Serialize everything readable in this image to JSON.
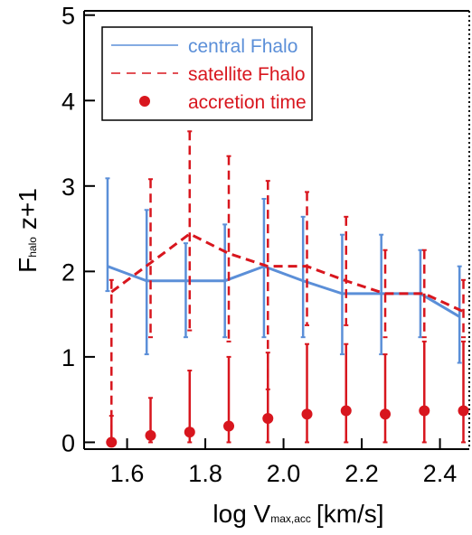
{
  "chart_data": {
    "type": "line",
    "xlabel": {
      "main": "log V",
      "sub": "max,acc",
      "rest": "[km/s]"
    },
    "ylabel": {
      "main": "F",
      "sub": "halo",
      "rest": "z+1"
    },
    "xlim": [
      1.49,
      2.475
    ],
    "ylim": [
      -0.08,
      5.05
    ],
    "xticks": [
      1.6,
      1.8,
      {
        "value": 2.0,
        "label": "2.0"
      },
      2.2,
      2.4
    ],
    "yticks": [
      0,
      1,
      2,
      3,
      4,
      5
    ],
    "legend": "top-left",
    "series": [
      {
        "name": "central Fhalo",
        "style": "solid",
        "color": "#5b8fd8",
        "x": [
          1.55,
          1.65,
          1.75,
          1.85,
          1.95,
          2.05,
          2.15,
          2.25,
          2.35,
          2.45
        ],
        "values": [
          2.06,
          1.89,
          1.89,
          1.89,
          2.06,
          1.89,
          1.74,
          1.74,
          1.74,
          1.47
        ],
        "lower": [
          1.77,
          1.03,
          1.23,
          1.23,
          1.23,
          1.23,
          1.03,
          1.03,
          1.23,
          0.93
        ],
        "upper": [
          3.09,
          2.72,
          2.33,
          2.55,
          2.85,
          2.64,
          2.43,
          2.43,
          2.25,
          2.06
        ]
      },
      {
        "name": "satellite Fhalo",
        "style": "dashed",
        "color": "#d8161e",
        "x": [
          1.56,
          1.66,
          1.76,
          1.86,
          1.96,
          2.06,
          2.16,
          2.26,
          2.36,
          2.46
        ],
        "values": [
          1.76,
          2.1,
          2.44,
          2.21,
          2.06,
          2.06,
          1.89,
          1.74,
          1.74,
          1.53
        ],
        "lower": [
          0,
          1.23,
          1.31,
          1.18,
          0.62,
          1.37,
          1.37,
          1.23,
          1.23,
          1.23
        ],
        "upper": [
          1.9,
          3.08,
          3.64,
          3.35,
          3.06,
          2.93,
          2.64,
          2.25,
          2.25,
          1.9
        ]
      },
      {
        "name": "accretion time",
        "style": "points",
        "color": "#d8161e",
        "x": [
          1.56,
          1.66,
          1.76,
          1.86,
          1.96,
          2.06,
          2.16,
          2.26,
          2.36,
          2.46
        ],
        "values": [
          0.0,
          0.08,
          0.12,
          0.19,
          0.28,
          0.33,
          0.37,
          0.33,
          0.37,
          0.37
        ],
        "lower": [
          0,
          0,
          0,
          0,
          0,
          0,
          0,
          0,
          0,
          0
        ],
        "upper": [
          0.31,
          0.52,
          0.84,
          1.0,
          1.05,
          1.15,
          1.15,
          1.03,
          1.18,
          1.18
        ]
      }
    ]
  }
}
